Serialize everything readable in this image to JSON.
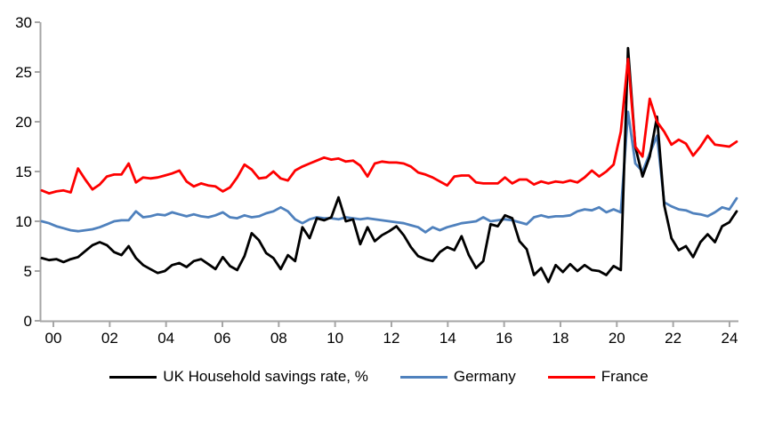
{
  "chart_data": {
    "type": "line",
    "title": "",
    "xlabel": "",
    "ylabel": "",
    "x_unit": "quarterly",
    "x_start": "2000Q1",
    "x_end": "2024Q1",
    "ylim": [
      0,
      30
    ],
    "y_ticks": [
      0,
      5,
      10,
      15,
      20,
      25,
      30
    ],
    "x_tick_labels": [
      "00",
      "02",
      "04",
      "06",
      "08",
      "10",
      "12",
      "14",
      "16",
      "18",
      "20",
      "22",
      "24"
    ],
    "grid": false,
    "legend_position": "bottom",
    "axis_color": "#a6a6a6",
    "background": "#ffffff",
    "series": [
      {
        "name": "UK Household savings rate, %",
        "color": "#000000",
        "values": [
          6.3,
          6.1,
          6.2,
          5.9,
          6.2,
          6.4,
          7.0,
          7.6,
          7.9,
          7.6,
          6.9,
          6.6,
          7.5,
          6.3,
          5.6,
          5.2,
          4.8,
          5.0,
          5.6,
          5.8,
          5.4,
          6.0,
          6.2,
          5.7,
          5.2,
          6.4,
          5.5,
          5.1,
          6.5,
          8.8,
          8.1,
          6.8,
          6.3,
          5.2,
          6.6,
          6.0,
          9.4,
          8.3,
          10.3,
          10.1,
          10.4,
          12.4,
          10.0,
          10.2,
          7.7,
          9.4,
          8.0,
          8.6,
          9.0,
          9.5,
          8.6,
          7.4,
          6.5,
          6.2,
          6.0,
          6.9,
          7.4,
          7.1,
          8.5,
          6.6,
          5.3,
          6.0,
          9.7,
          9.5,
          10.6,
          10.3,
          8.0,
          7.2,
          4.6,
          5.3,
          3.9,
          5.6,
          4.9,
          5.7,
          5.0,
          5.6,
          5.1,
          5.0,
          4.6,
          5.5,
          5.1,
          27.4,
          17.5,
          14.5,
          16.5,
          20.5,
          11.6,
          8.3,
          7.1,
          7.5,
          6.4,
          7.9,
          8.7,
          7.9,
          9.5,
          9.9,
          11.0
        ]
      },
      {
        "name": "Germany",
        "color": "#4f81bd",
        "values": [
          10.0,
          9.8,
          9.5,
          9.3,
          9.1,
          9.0,
          9.1,
          9.2,
          9.4,
          9.7,
          10.0,
          10.1,
          10.1,
          11.0,
          10.4,
          10.5,
          10.7,
          10.6,
          10.9,
          10.7,
          10.5,
          10.7,
          10.5,
          10.4,
          10.6,
          10.9,
          10.4,
          10.3,
          10.6,
          10.4,
          10.5,
          10.8,
          11.0,
          11.4,
          11.0,
          10.2,
          9.8,
          10.2,
          10.4,
          10.3,
          10.3,
          10.2,
          10.4,
          10.3,
          10.2,
          10.3,
          10.2,
          10.1,
          10.0,
          9.9,
          9.8,
          9.6,
          9.4,
          8.9,
          9.4,
          9.1,
          9.4,
          9.6,
          9.8,
          9.9,
          10.0,
          10.4,
          10.0,
          10.1,
          10.2,
          10.1,
          9.9,
          9.7,
          10.4,
          10.6,
          10.4,
          10.5,
          10.5,
          10.6,
          11.0,
          11.2,
          11.1,
          11.4,
          10.9,
          11.2,
          10.9,
          21.0,
          15.8,
          15.0,
          16.8,
          18.6,
          11.9,
          11.5,
          11.2,
          11.1,
          10.8,
          10.7,
          10.5,
          10.9,
          11.4,
          11.2,
          12.3
        ]
      },
      {
        "name": "France",
        "color": "#fe0000",
        "values": [
          13.1,
          12.8,
          13.0,
          13.1,
          12.9,
          15.3,
          14.2,
          13.2,
          13.7,
          14.5,
          14.7,
          14.7,
          15.8,
          13.9,
          14.4,
          14.3,
          14.4,
          14.6,
          14.8,
          15.1,
          14.0,
          13.5,
          13.8,
          13.6,
          13.5,
          13.0,
          13.4,
          14.4,
          15.7,
          15.2,
          14.3,
          14.4,
          15.0,
          14.3,
          14.1,
          15.1,
          15.5,
          15.8,
          16.1,
          16.4,
          16.2,
          16.3,
          16.0,
          16.1,
          15.6,
          14.5,
          15.8,
          16.0,
          15.9,
          15.9,
          15.8,
          15.5,
          14.9,
          14.7,
          14.4,
          14.0,
          13.6,
          14.5,
          14.6,
          14.6,
          13.9,
          13.8,
          13.8,
          13.8,
          14.4,
          13.8,
          14.2,
          14.2,
          13.7,
          14.0,
          13.8,
          14.0,
          13.9,
          14.1,
          13.9,
          14.4,
          15.1,
          14.5,
          15.0,
          15.7,
          19.0,
          26.3,
          17.5,
          16.5,
          22.3,
          20.0,
          19.0,
          17.7,
          18.2,
          17.8,
          16.6,
          17.5,
          18.6,
          17.7,
          17.6,
          17.5,
          18.0
        ]
      }
    ],
    "draw_order": [
      1,
      0,
      2
    ]
  }
}
